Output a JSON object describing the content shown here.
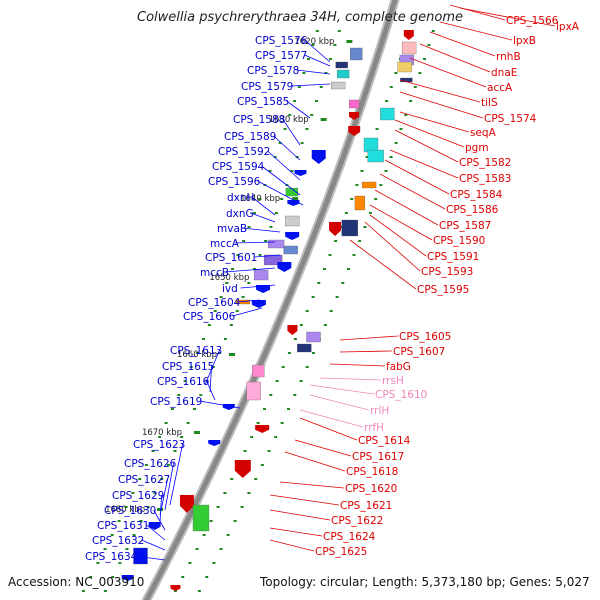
{
  "title": "Colwellia psychrerythraea 34H, complete genome",
  "accession": "Accession: NC_003910",
  "topology": "Topology: circular; Length: 5,373,180 bp; Genes: 5,027",
  "colors": {
    "left_label": "#0000cc",
    "right_label": "#dd0000",
    "rna_label": "#ee88bb",
    "backbone": "#888888",
    "kbp_tick": "#228822"
  },
  "kbp_labels": [
    "1620 kbp",
    "1630 kbp",
    "1640 kbp",
    "1650 kbp",
    "1660 kbp",
    "1670 kbp",
    "1680 kbp"
  ],
  "left_labels": [
    "CPS_1576",
    "CPS_1577",
    "CPS_1578",
    "CPS_1579",
    "CPS_1585",
    "CPS_1588",
    "CPS_1589",
    "CPS_1592",
    "CPS_1594",
    "CPS_1596",
    "dxnH",
    "dxnG",
    "mvaB",
    "mccA",
    "CPS_1601",
    "mccB",
    "ivd",
    "CPS_1604",
    "CPS_1606",
    "CPS_1613",
    "CPS_1615",
    "CPS_1616",
    "CPS_1619",
    "CPS_1623",
    "CPS_1626",
    "CPS_1627",
    "CPS_1629",
    "CPS_1630",
    "CPS_1631",
    "CPS_1632",
    "CPS_1634"
  ],
  "right_labels": [
    "CPS_1566",
    "lpxA",
    "lpxB",
    "rnhB",
    "dnaE",
    "accA",
    "tilS",
    "CPS_1574",
    "seqA",
    "pgm",
    "CPS_1582",
    "CPS_1583",
    "CPS_1584",
    "CPS_1586",
    "CPS_1587",
    "CPS_1590",
    "CPS_1591",
    "CPS_1593",
    "CPS_1595",
    "CPS_1605",
    "CPS_1607",
    "fabG",
    "rrsH",
    "CPS_1610",
    "rrlH",
    "rrfH",
    "CPS_1614",
    "CPS_1617",
    "CPS_1618",
    "CPS_1620",
    "CPS_1621",
    "CPS_1622",
    "CPS_1624",
    "CPS_1625"
  ],
  "rna_labels": [
    "rrsH",
    "CPS_1610",
    "rrlH",
    "rrfH"
  ]
}
